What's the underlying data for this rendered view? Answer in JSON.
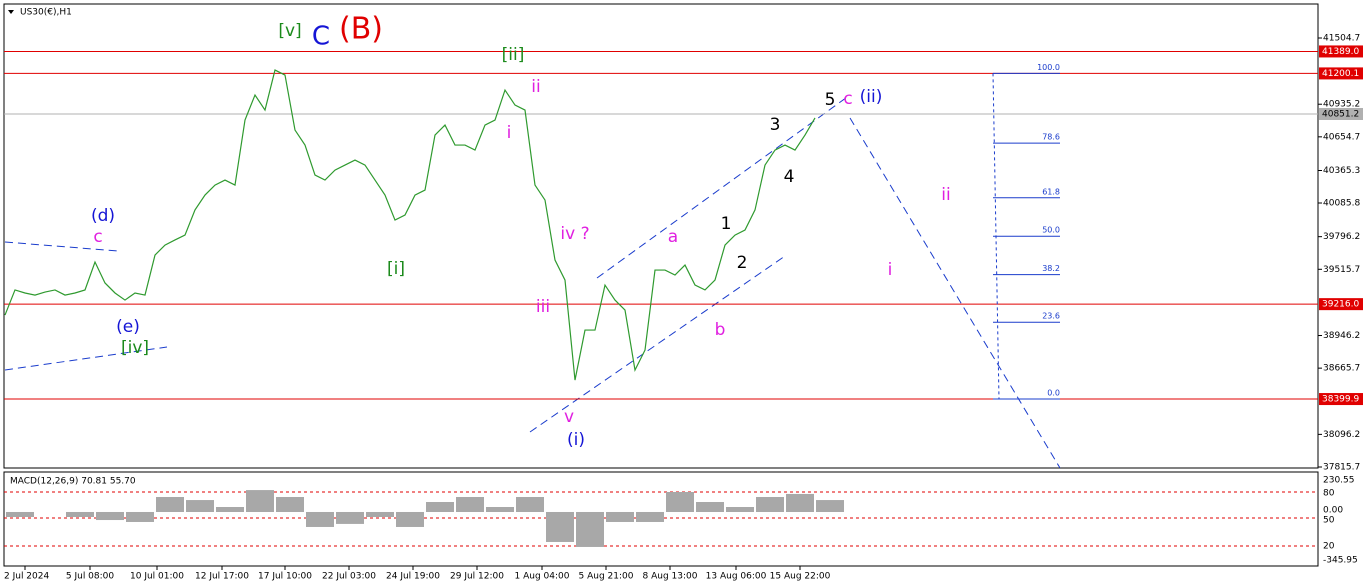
{
  "chart_data": {
    "type": "line",
    "title": "US30(€),H1",
    "series": [
      {
        "name": "US30",
        "color": "#2f9a2f",
        "values": [
          39122,
          39338,
          39312,
          39294,
          39320,
          39338,
          39294,
          39312,
          39338,
          39578,
          39398,
          39312,
          39251,
          39312,
          39294,
          39638,
          39724,
          39768,
          39810,
          40026,
          40154,
          40240,
          40283,
          40240,
          40799,
          41014,
          40885,
          41229,
          41186,
          40713,
          40584,
          40326,
          40283,
          40369,
          40412,
          40455,
          40412,
          40283,
          40154,
          39939,
          39982,
          40154,
          40197,
          40670,
          40756,
          40584,
          40584,
          40541,
          40756,
          40799,
          41057,
          40928,
          40885,
          40240,
          40111,
          39595,
          39423,
          38563,
          38993,
          38993,
          39380,
          39251,
          39165,
          38649,
          38821,
          39509,
          39509,
          39466,
          39552,
          39380,
          39338,
          39423,
          39724,
          39810,
          39853,
          40026,
          40412,
          40541,
          40584,
          40541,
          40670,
          40817
        ]
      }
    ],
    "ylim": [
      37807,
      41797
    ],
    "yticks": [
      41504.7,
      40935.2,
      40654.7,
      40365.3,
      40085.8,
      39796.2,
      39515.7,
      38946.2,
      38665.7,
      38096.2,
      37815.7
    ],
    "xticks": [
      {
        "value": 2,
        "label": "2 Jul 2024"
      },
      {
        "value": 8.5,
        "label": "5 Jul 08:00"
      },
      {
        "value": 15.2,
        "label": "10 Jul 01:00"
      },
      {
        "value": 21.7,
        "label": "12 Jul 17:00"
      },
      {
        "value": 28,
        "label": "17 Jul 10:00"
      },
      {
        "value": 34.4,
        "label": "22 Jul 03:00"
      },
      {
        "value": 40.8,
        "label": "24 Jul 19:00"
      },
      {
        "value": 47.2,
        "label": "29 Jul 12:00"
      },
      {
        "value": 53.7,
        "label": "1 Aug 04:00"
      },
      {
        "value": 60.1,
        "label": "5 Aug 21:00"
      },
      {
        "value": 66.5,
        "label": "8 Aug 13:00"
      },
      {
        "value": 73.1,
        "label": "13 Aug 06:00"
      },
      {
        "value": 79.5,
        "label": "15 Aug 22:00"
      }
    ],
    "hlines": [
      {
        "value": 41389.0,
        "label": "41389.0",
        "color": "#e00000"
      },
      {
        "value": 41200.1,
        "label": "41200.1",
        "color": "#e00000"
      },
      {
        "value": 40851.2,
        "label": "40851.2",
        "color": "#b0b0b0"
      },
      {
        "value": 39216.0,
        "label": "39216.0",
        "color": "#e00000"
      },
      {
        "value": 38399.9,
        "label": "38399.9",
        "color": "#e00000"
      }
    ],
    "fib_levels": [
      {
        "value": 100,
        "label": "100.0"
      },
      78.6,
      61.8,
      {
        "value": 50,
        "label": "50.0"
      },
      38.2,
      23.6,
      {
        "value": 0,
        "label": "0.0"
      }
    ],
    "annotations": [
      {
        "text": "[v]",
        "color": "#1b8a1b"
      },
      {
        "text": "C",
        "color": "#1515d5"
      },
      {
        "text": "(B)",
        "color": "#e00000"
      },
      {
        "text": "[ii]",
        "color": "#1b8a1b"
      },
      {
        "text": "ii",
        "color": "#e020e0"
      },
      {
        "text": "i",
        "color": "#e020e0"
      },
      {
        "text": "(d)",
        "color": "#1515d5"
      },
      {
        "text": "c",
        "color": "#e020e0"
      },
      {
        "text": "[i]",
        "color": "#1b8a1b"
      },
      {
        "text": "iv ?",
        "color": "#e020e0"
      },
      {
        "text": "iii",
        "color": "#e020e0"
      },
      {
        "text": "(e)",
        "color": "#1515d5"
      },
      {
        "text": "[iv]",
        "color": "#1b8a1b"
      },
      {
        "text": "v",
        "color": "#e020e0"
      },
      {
        "text": "(i)",
        "color": "#1515d5"
      },
      {
        "text": "a",
        "color": "#e020e0"
      },
      {
        "text": "b",
        "color": "#e020e0"
      },
      {
        "text": "1",
        "color": "#000000"
      },
      {
        "text": "2",
        "color": "#000000"
      },
      {
        "text": "3",
        "color": "#000000"
      },
      {
        "text": "4",
        "color": "#000000"
      },
      {
        "text": "5",
        "color": "#000000"
      },
      {
        "text": "c",
        "color": "#e020e0"
      },
      {
        "text": "(ii)",
        "color": "#1515d5"
      },
      {
        "text": "ii",
        "color": "#e020e0"
      },
      {
        "text": "i",
        "color": "#e020e0"
      }
    ],
    "macd": {
      "title": "MACD(12,26,9) 70.81 55.70",
      "color": "#a8a8a8",
      "histogram": [
        -36,
        0,
        -36,
        -58,
        -72,
        108,
        86,
        36,
        158,
        108,
        -108,
        -86,
        -36,
        -108,
        72,
        108,
        36,
        108,
        -216,
        -252,
        -72,
        -72,
        144,
        72,
        36,
        108,
        130,
        86
      ],
      "ylim": [
        -345.95,
        230.55
      ],
      "axis_labels": [
        "230.55",
        "80",
        "0.00",
        "50",
        "20",
        "-345.95"
      ]
    }
  }
}
